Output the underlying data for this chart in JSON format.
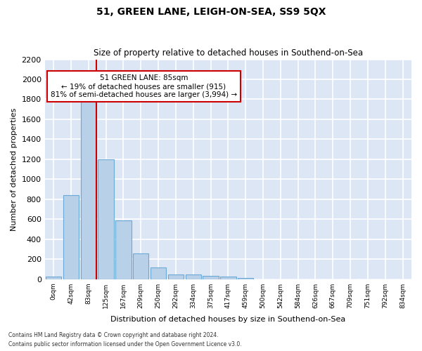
{
  "title": "51, GREEN LANE, LEIGH-ON-SEA, SS9 5QX",
  "subtitle": "Size of property relative to detached houses in Southend-on-Sea",
  "xlabel": "Distribution of detached houses by size in Southend-on-Sea",
  "ylabel": "Number of detached properties",
  "bar_color": "#b8d0e8",
  "bar_edge_color": "#6aaad4",
  "background_color": "#dce6f5",
  "fig_background": "#ffffff",
  "grid_color": "#ffffff",
  "categories": [
    "0sqm",
    "42sqm",
    "83sqm",
    "125sqm",
    "167sqm",
    "209sqm",
    "250sqm",
    "292sqm",
    "334sqm",
    "375sqm",
    "417sqm",
    "459sqm",
    "500sqm",
    "542sqm",
    "584sqm",
    "626sqm",
    "667sqm",
    "709sqm",
    "751sqm",
    "792sqm",
    "834sqm"
  ],
  "values": [
    25,
    840,
    1800,
    1200,
    590,
    260,
    115,
    50,
    50,
    35,
    25,
    15,
    0,
    0,
    0,
    0,
    0,
    0,
    0,
    0,
    0
  ],
  "ylim": [
    0,
    2200
  ],
  "yticks": [
    0,
    200,
    400,
    600,
    800,
    1000,
    1200,
    1400,
    1600,
    1800,
    2000,
    2200
  ],
  "vline_color": "#cc0000",
  "annotation_title": "51 GREEN LANE: 85sqm",
  "annotation_line1": "← 19% of detached houses are smaller (915)",
  "annotation_line2": "81% of semi-detached houses are larger (3,994) →",
  "annotation_box_color": "#ffffff",
  "annotation_box_edge": "#cc0000",
  "footer1": "Contains HM Land Registry data © Crown copyright and database right 2024.",
  "footer2": "Contains public sector information licensed under the Open Government Licence v3.0."
}
